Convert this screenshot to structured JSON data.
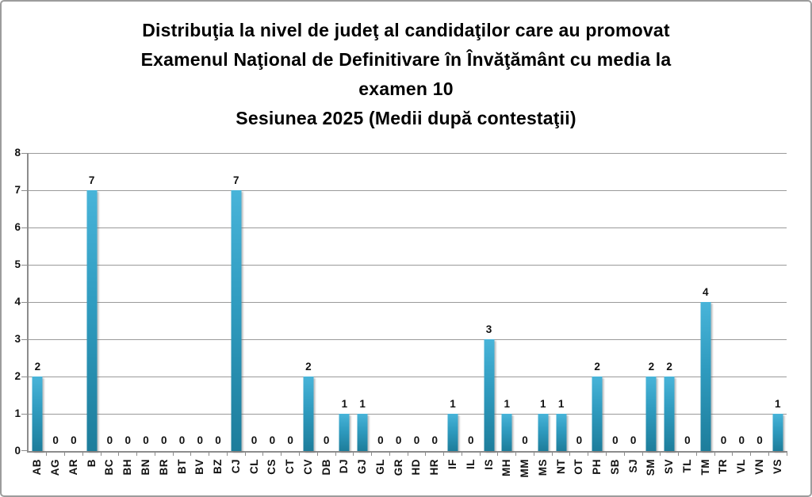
{
  "title": {
    "lines": [
      "Distribuţia la nivel de judeţ al candidaţilor care au promovat",
      "Examenul Naţional de Definitivare în Învăţământ cu media la",
      "examen 10",
      "Sesiunea 2025 (Medii după contestaţii)"
    ]
  },
  "chart_data": {
    "type": "bar",
    "title": "Distribuţia la nivel de judeţ al candidaţilor care au promovat Examenul Naţional de Definitivare în Învăţământ cu media la examen 10 Sesiunea 2025 (Medii după contestaţii)",
    "categories": [
      "AB",
      "AG",
      "AR",
      "B",
      "BC",
      "BH",
      "BN",
      "BR",
      "BT",
      "BV",
      "BZ",
      "CJ",
      "CL",
      "CS",
      "CT",
      "CV",
      "DB",
      "DJ",
      "GJ",
      "GL",
      "GR",
      "HD",
      "HR",
      "IF",
      "IL",
      "IS",
      "MH",
      "MM",
      "MS",
      "NT",
      "OT",
      "PH",
      "SB",
      "SJ",
      "SM",
      "SV",
      "TL",
      "TM",
      "TR",
      "VL",
      "VN",
      "VS"
    ],
    "values": [
      2,
      0,
      0,
      7,
      0,
      0,
      0,
      0,
      0,
      0,
      0,
      7,
      0,
      0,
      0,
      2,
      0,
      1,
      1,
      0,
      0,
      0,
      0,
      1,
      0,
      3,
      1,
      0,
      1,
      1,
      0,
      2,
      0,
      0,
      2,
      2,
      0,
      4,
      0,
      0,
      0,
      1
    ],
    "xlabel": "",
    "ylabel": "",
    "ylim": [
      0,
      8
    ],
    "y_ticks": [
      0,
      1,
      2,
      3,
      4,
      5,
      6,
      7,
      8
    ],
    "grid": true,
    "legend": false,
    "data_labels": true,
    "colors": {
      "bar_top": "#48b4d9",
      "bar_bottom": "#1d7d9b",
      "gridline": "#9a9a9a",
      "axis": "#8c8c8c",
      "text": "#111111",
      "frame_border": "#9c9c9c"
    }
  }
}
